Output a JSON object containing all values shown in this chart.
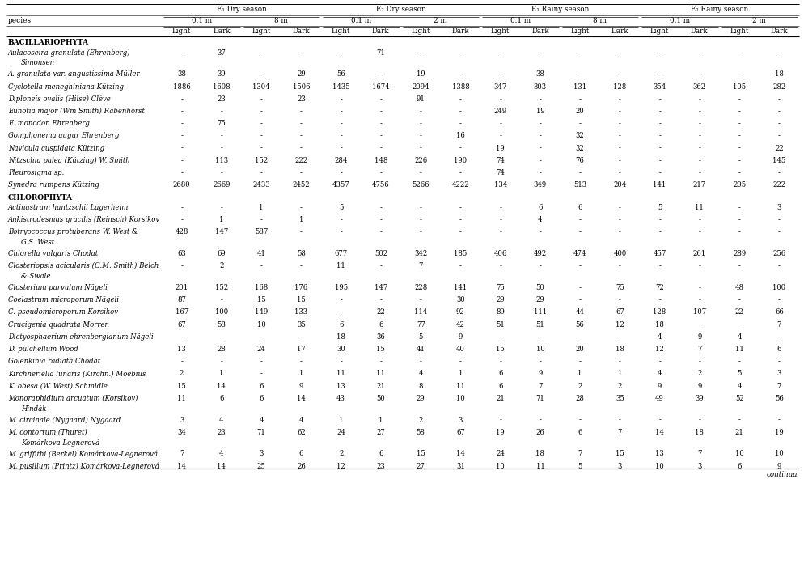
{
  "sections": [
    {
      "name": "BACILLARIOPHYTA",
      "rows": [
        {
          "species": "Aulacoseira granulata (Ehrenberg)",
          "cont": "Simonsen",
          "vals": [
            "-",
            "37",
            "-",
            "-",
            "-",
            "71",
            "-",
            "-",
            "-",
            "-",
            "-",
            "-",
            "-",
            "-",
            "-",
            "-"
          ]
        },
        {
          "species": "A. granulata var. angustissima Müller",
          "cont": null,
          "vals": [
            "38",
            "39",
            "-",
            "29",
            "56",
            "-",
            "19",
            "-",
            "-",
            "38",
            "-",
            "-",
            "-",
            "-",
            "-",
            "18"
          ]
        },
        {
          "species": "Cyclotella meneghiniana Kützing",
          "cont": null,
          "vals": [
            "1886",
            "1608",
            "1304",
            "1506",
            "1435",
            "1674",
            "2094",
            "1388",
            "347",
            "303",
            "131",
            "128",
            "354",
            "362",
            "105",
            "282"
          ]
        },
        {
          "species": "Diploneis ovalis (Hilse) Clève",
          "cont": null,
          "vals": [
            "-",
            "23",
            "-",
            "23",
            "-",
            "-",
            "91",
            "-",
            "-",
            "-",
            "-",
            "-",
            "-",
            "-",
            "-",
            "-"
          ]
        },
        {
          "species": "Eunotia major (Wm Smith) Rabenhorst",
          "cont": null,
          "vals": [
            "-",
            "-",
            "-",
            "-",
            "-",
            "-",
            "-",
            "-",
            "249",
            "19",
            "20",
            "-",
            "-",
            "-",
            "-",
            "-"
          ]
        },
        {
          "species": "E. monodon Ehrenberg",
          "cont": null,
          "vals": [
            "-",
            "75",
            "-",
            "-",
            "-",
            "-",
            "-",
            "-",
            "-",
            "-",
            "-",
            "-",
            "-",
            "-",
            "-",
            "-"
          ]
        },
        {
          "species": "Gomphonema augur Ehrenberg",
          "cont": null,
          "vals": [
            "-",
            "-",
            "-",
            "-",
            "-",
            "-",
            "-",
            "16",
            "-",
            "-",
            "32",
            "-",
            "-",
            "-",
            "-",
            "-"
          ]
        },
        {
          "species": "Navicula cuspidata Kützing",
          "cont": null,
          "vals": [
            "-",
            "-",
            "-",
            "-",
            "-",
            "-",
            "-",
            "-",
            "19",
            "-",
            "32",
            "-",
            "-",
            "-",
            "-",
            "22"
          ]
        },
        {
          "species": "Nitzschia palea (Kützing) W. Smith",
          "cont": null,
          "vals": [
            "-",
            "113",
            "152",
            "222",
            "284",
            "148",
            "226",
            "190",
            "74",
            "-",
            "76",
            "-",
            "-",
            "-",
            "-",
            "145"
          ]
        },
        {
          "species": "Pleurosigma sp.",
          "cont": null,
          "vals": [
            "-",
            "-",
            "-",
            "-",
            "-",
            "-",
            "-",
            "-",
            "74",
            "-",
            "-",
            "-",
            "-",
            "-",
            "-",
            "-"
          ]
        },
        {
          "species": "Synedra rumpens Kützing",
          "cont": null,
          "vals": [
            "2680",
            "2669",
            "2433",
            "2452",
            "4357",
            "4756",
            "5266",
            "4222",
            "134",
            "349",
            "513",
            "204",
            "141",
            "217",
            "205",
            "222"
          ]
        }
      ]
    },
    {
      "name": "CHLOROPHYTA",
      "rows": [
        {
          "species": "Actinastrum hantzschii Lagerheim",
          "cont": null,
          "vals": [
            "-",
            "-",
            "1",
            "-",
            "5",
            "-",
            "-",
            "-",
            "-",
            "6",
            "6",
            "-",
            "5",
            "11",
            "-",
            "3"
          ]
        },
        {
          "species": "Ankistrodesmus gracilis (Reinsch) Korsikov",
          "cont": null,
          "vals": [
            "-",
            "1",
            "-",
            "1",
            "-",
            "-",
            "-",
            "-",
            "-",
            "4",
            "-",
            "-",
            "-",
            "-",
            "-",
            "-"
          ]
        },
        {
          "species": "Botryococcus protuberans W. West &",
          "cont": "G.S. West",
          "vals": [
            "428",
            "147",
            "587",
            "-",
            "-",
            "-",
            "-",
            "-",
            "-",
            "-",
            "-",
            "-",
            "-",
            "-",
            "-",
            "-"
          ]
        },
        {
          "species": "Chlorella vulgaris Chodat",
          "cont": null,
          "vals": [
            "63",
            "69",
            "41",
            "58",
            "677",
            "502",
            "342",
            "185",
            "406",
            "492",
            "474",
            "400",
            "457",
            "261",
            "289",
            "256"
          ]
        },
        {
          "species": "Closteriopsis acicularis (G.M. Smith) Belch",
          "cont": "& Swale",
          "vals": [
            "-",
            "2",
            "-",
            "-",
            "11",
            "-",
            "7",
            "-",
            "-",
            "-",
            "-",
            "-",
            "-",
            "-",
            "-",
            "-"
          ]
        },
        {
          "species": "Closterium parvulum Nägeli",
          "cont": null,
          "vals": [
            "201",
            "152",
            "168",
            "176",
            "195",
            "147",
            "228",
            "141",
            "75",
            "50",
            "-",
            "75",
            "72",
            "-",
            "48",
            "100"
          ]
        },
        {
          "species": "Coelastrum microporum Nägeli",
          "cont": null,
          "vals": [
            "87",
            "-",
            "15",
            "15",
            "-",
            "-",
            "-",
            "30",
            "29",
            "29",
            "-",
            "-",
            "-",
            "-",
            "-",
            "-"
          ]
        },
        {
          "species": "C. pseudomicroporum Korsikov",
          "cont": null,
          "vals": [
            "167",
            "100",
            "149",
            "133",
            "-",
            "22",
            "114",
            "92",
            "89",
            "111",
            "44",
            "67",
            "128",
            "107",
            "22",
            "66"
          ]
        },
        {
          "species": "Crucigenia quadrata Morren",
          "cont": null,
          "vals": [
            "67",
            "58",
            "10",
            "35",
            "6",
            "6",
            "77",
            "42",
            "51",
            "51",
            "56",
            "12",
            "18",
            "-",
            "-",
            "7"
          ]
        },
        {
          "species": "Dictyosphaerium ehrenbergianum Nägeli",
          "cont": null,
          "vals": [
            "-",
            "-",
            "-",
            "-",
            "18",
            "36",
            "5",
            "9",
            "-",
            "-",
            "-",
            "-",
            "4",
            "9",
            "4",
            "-"
          ]
        },
        {
          "species": "D. pulchellum Wood",
          "cont": null,
          "vals": [
            "13",
            "28",
            "24",
            "17",
            "30",
            "15",
            "41",
            "40",
            "15",
            "10",
            "20",
            "18",
            "12",
            "7",
            "11",
            "6"
          ]
        },
        {
          "species": "Golenkinia radiata Chodat",
          "cont": null,
          "vals": [
            "-",
            "-",
            "-",
            "-",
            "-",
            "-",
            "-",
            "-",
            "-",
            "-",
            "-",
            "-",
            "-",
            "-",
            "-",
            "-"
          ]
        },
        {
          "species": "Kirchneriella lunaris (Kirchn.) Möebius",
          "cont": null,
          "vals": [
            "2",
            "1",
            "-",
            "1",
            "11",
            "11",
            "4",
            "1",
            "6",
            "9",
            "1",
            "1",
            "4",
            "2",
            "5",
            "3"
          ]
        },
        {
          "species": "K. obesa (W. West) Schmidle",
          "cont": null,
          "vals": [
            "15",
            "14",
            "6",
            "9",
            "13",
            "21",
            "8",
            "11",
            "6",
            "7",
            "2",
            "2",
            "9",
            "9",
            "4",
            "7"
          ]
        },
        {
          "species": "Monoraphidium arcuatum (Korsikov)",
          "cont": "Hindák",
          "vals": [
            "11",
            "6",
            "6",
            "14",
            "43",
            "50",
            "29",
            "10",
            "21",
            "71",
            "28",
            "35",
            "49",
            "39",
            "52",
            "56"
          ]
        },
        {
          "species": "M. circinale (Nygaard) Nygaard",
          "cont": null,
          "vals": [
            "3",
            "4",
            "4",
            "4",
            "1",
            "1",
            "2",
            "3",
            "-",
            "-",
            "-",
            "-",
            "-",
            "-",
            "-",
            "-"
          ]
        },
        {
          "species": "M. contortum (Thuret)",
          "cont": "Komárkova-Legnerová",
          "vals": [
            "34",
            "23",
            "71",
            "62",
            "24",
            "27",
            "58",
            "67",
            "19",
            "26",
            "6",
            "7",
            "14",
            "18",
            "21",
            "19"
          ]
        },
        {
          "species": "M. griffithi (Berkel) Komárkova-Legnerová",
          "cont": null,
          "vals": [
            "7",
            "4",
            "3",
            "6",
            "2",
            "6",
            "15",
            "14",
            "24",
            "18",
            "7",
            "15",
            "13",
            "7",
            "10",
            "10"
          ]
        },
        {
          "species": "M. pusillum (Printz) Komárkova-Legnerová",
          "cont": null,
          "vals": [
            "14",
            "14",
            "25",
            "26",
            "12",
            "23",
            "27",
            "31",
            "10",
            "11",
            "5",
            "3",
            "10",
            "3",
            "6",
            "9"
          ]
        }
      ]
    }
  ],
  "footer": "continua",
  "bg_color": "#ffffff",
  "text_color": "#000000",
  "line_color": "#000000",
  "species_label": "pecies",
  "season_labels": [
    "E₁ Dry season",
    "E₂ Dry season",
    "E₁ Rainy season",
    "E₂ Rainy season"
  ],
  "depth_labels": [
    "0.1 m",
    "8 m",
    "0.1 m",
    "2 m",
    "0.1 m",
    "8 m",
    "0.1 m",
    "2 m"
  ],
  "col3_label": "Light",
  "col4_label": "Dark"
}
